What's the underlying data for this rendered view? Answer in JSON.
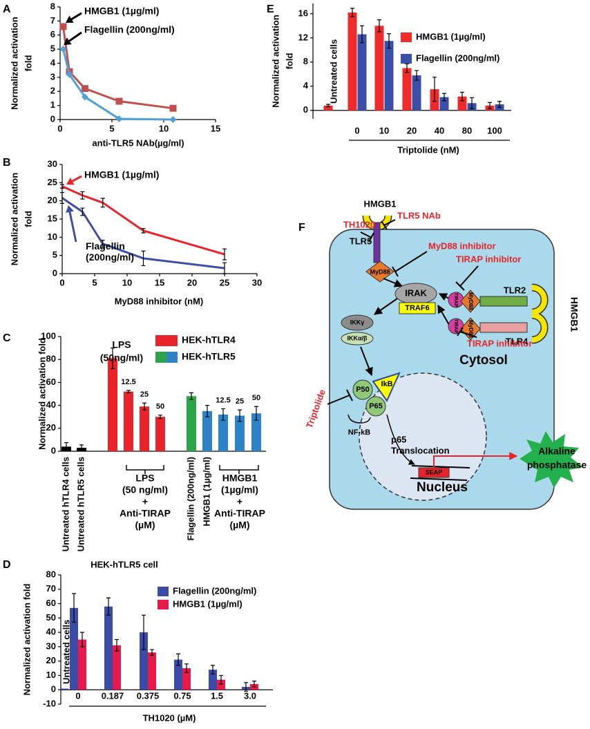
{
  "chart_data": [
    {
      "type": "line",
      "panel": "A",
      "ylabel": [
        "Normalized activation",
        "fold"
      ],
      "xlabel": "anti-TLR5 NAb(µg/ml)",
      "x": [
        0.3,
        0.9,
        2.4,
        5.7,
        10.9
      ],
      "xlim": [
        0,
        15
      ],
      "xticks": [
        0,
        5,
        10,
        15
      ],
      "ylim": [
        0,
        8
      ],
      "yticks": [
        0,
        1,
        2,
        3,
        4,
        5,
        6,
        7,
        8
      ],
      "series": [
        {
          "name": "HMGB1 (1µg/ml)",
          "color": "#c0504d",
          "marker": "square",
          "values": [
            6.6,
            3.4,
            2.2,
            1.3,
            0.8
          ]
        },
        {
          "name": "Flagellin (200ng/ml)",
          "color": "#4f9fd8",
          "marker": "diamond",
          "values": [
            5.0,
            3.2,
            1.6,
            0.05,
            0.0
          ]
        }
      ]
    },
    {
      "type": "line",
      "panel": "B",
      "ylabel": [
        "Normalized activation",
        "fold"
      ],
      "xlabel": "MyD88 inhibitor (nM)",
      "x": [
        0,
        3.125,
        6.25,
        12.5,
        25
      ],
      "xlim": [
        0,
        30
      ],
      "xticks": [
        0,
        5,
        10,
        15,
        20,
        25,
        30
      ],
      "ylim": [
        0,
        30
      ],
      "yticks": [
        0,
        5,
        10,
        15,
        20,
        25,
        30
      ],
      "series": [
        {
          "name": "HMGB1 (1µg/ml)",
          "color": "#e8242a",
          "values": [
            24,
            21.5,
            19.5,
            11.8,
            5.3
          ],
          "errors": [
            0.5,
            1,
            1.2,
            0.6,
            1.5
          ]
        },
        {
          "name": "Flagellin (200ng/ml)",
          "color": "#3d4ea6",
          "values": [
            20.8,
            17,
            8.2,
            4.2,
            1.5
          ],
          "errors": [
            1.5,
            1,
            1,
            2,
            1.5
          ]
        }
      ]
    },
    {
      "type": "bar",
      "panel": "C",
      "ylabel": "Normalized activation fold",
      "ylim": [
        0,
        100
      ],
      "yticks": [
        0,
        20,
        40,
        60,
        80,
        100
      ],
      "categories": [
        "Untreated hTLR4 cells",
        "Untreated hTLR5 cells",
        null,
        null,
        null,
        null,
        "Flagellin (200ng/ml)",
        "HMGB1 (1µg/ml)",
        null,
        null,
        null
      ],
      "values": [
        4,
        3,
        81,
        52,
        39,
        30,
        48,
        35,
        32,
        31,
        33
      ],
      "errors": [
        3.5,
        2.5,
        9,
        1,
        3,
        1.5,
        3,
        5,
        5,
        5,
        6
      ],
      "colors": [
        "#000000",
        "#000000",
        "#e8242a",
        "#e8242a",
        "#e8242a",
        "#e8242a",
        "#2ca44a",
        "#2e82c6",
        "#2e82c6",
        "#2e82c6",
        "#2e82c6"
      ],
      "dose_labels": [
        null,
        null,
        null,
        "12.5",
        "25",
        "50",
        null,
        null,
        "12.5",
        "25",
        "50"
      ],
      "treatment_label": [
        "LPS",
        "(50ng/ml)"
      ],
      "group_labels": [
        [
          "LPS",
          "(50 ng/ml)",
          "+",
          "Anti-TIRAP",
          "(µM)"
        ],
        [
          "HMGB1",
          "(1µg/ml)",
          "+",
          "Anti-TIRAP",
          "(µM)"
        ]
      ],
      "legend": [
        {
          "name": "HEK-hTLR4",
          "colors": [
            "#e8242a"
          ]
        },
        {
          "name": "HEK-hTLR5",
          "colors": [
            "#2ca44a",
            "#2e82c6"
          ]
        }
      ]
    },
    {
      "type": "bar",
      "panel": "D",
      "title": "HEK-hTLR5 cell",
      "ylabel": "Normalized activation fold",
      "xlabel": "TH1020 (µM)",
      "categories": [
        "Untreated cells",
        "0",
        "0.187",
        "0.375",
        "0.75",
        "1.5",
        "3.0"
      ],
      "ylim": [
        -10,
        80
      ],
      "yticks": [
        -10,
        0,
        10,
        20,
        30,
        40,
        50,
        60,
        70,
        80
      ],
      "series": [
        {
          "name": "Flagellin (200ng/ml)",
          "color": "#3c4ba5",
          "values": [
            0.8,
            57,
            58,
            40,
            21,
            14,
            2
          ],
          "errors": [
            null,
            10,
            6,
            12,
            4,
            3,
            3
          ]
        },
        {
          "name": "HMGB1 (1µg/ml)",
          "color": "#e8194b",
          "values": [
            null,
            35,
            31,
            26,
            15,
            7,
            4
          ],
          "errors": [
            null,
            5,
            4,
            2,
            3,
            3,
            2
          ]
        }
      ]
    },
    {
      "type": "bar",
      "panel": "E",
      "ylabel": [
        "Normalized activation",
        "fold"
      ],
      "xlabel": "Triptolide (nM)",
      "categories": [
        "Untreated cells",
        "0",
        "10",
        "20",
        "40",
        "80",
        "100"
      ],
      "ylim": [
        -1.4,
        17.7
      ],
      "yticks": [
        0,
        4,
        8,
        12,
        16
      ],
      "series": [
        {
          "name": "HMGB1 (1µg/ml)",
          "color": "#ee2a2a",
          "values": [
            0.8,
            16.2,
            14,
            7,
            3.5,
            2.3,
            0.8
          ],
          "errors": [
            0.2,
            0.7,
            1,
            0.7,
            2,
            0.7,
            0.5
          ]
        },
        {
          "name": "Flagellin (200ng/ml)",
          "color": "#3a4fa8",
          "values": [
            null,
            12.6,
            11.5,
            5.8,
            2.2,
            1.2,
            1.0
          ],
          "errors": [
            null,
            1.4,
            1.2,
            0.8,
            0.6,
            0.9,
            0.5
          ]
        }
      ]
    }
  ],
  "diagram": {
    "panel": "F",
    "ligand_top": "HMGB1",
    "ligand_right": "HMGB1",
    "th1020": "TH1020",
    "tlr5_nab": "TLR5 NAb",
    "tlr5": "TLR5",
    "myd88_tlr5": "MyD88",
    "myd88_inhibitor": "MyD88 inhibitor",
    "tirap_inhibitor_top": "TIRAP inhibitor",
    "tirap_inhibitor_bottom": "TIRAP inhibitor",
    "irak": "IRAK",
    "traf6": "TRAF6",
    "tirap_tlr2": "TIRAP",
    "myd88_tlr2": "MyD88",
    "tlr2": "TLR2",
    "tirap_tlr4": "TIRAP",
    "myd88_tlr4": "MyD88",
    "tlr4": "TLR4",
    "ikk_gamma": "IKKγ",
    "ikk_ab": "IKKα/β",
    "cytosol": "Cytosol",
    "p50": "P50",
    "ikb": "IkB",
    "p65": "P65",
    "triptolide": "Triptolide",
    "nfkb": "NF-kB",
    "p65_translocation": [
      "p65",
      "Translocation"
    ],
    "seap": "SEAP",
    "alkaline_phosphatase": [
      "Alkaline",
      "phosphatase"
    ],
    "nucleus": "Nucleus"
  }
}
